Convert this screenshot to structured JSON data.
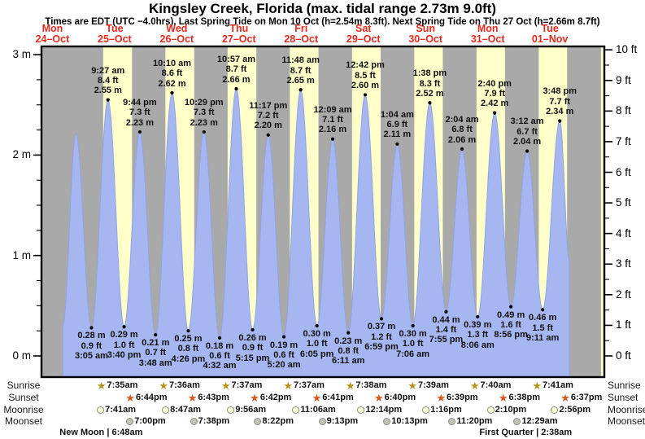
{
  "title": "Kingsley Creek, Florida (max. tidal range 2.73m 9.0ft)",
  "subtitle": "Times are EDT (UTC −4.0hrs). Last Spring Tide on Mon 10 Oct (h=2.54m 8.3ft). Next Spring Tide on Thu 27 Oct (h=2.66m 8.7ft)",
  "day_headers": [
    {
      "name": "Mon",
      "date": "24–Oct"
    },
    {
      "name": "Tue",
      "date": "25–Oct"
    },
    {
      "name": "Wed",
      "date": "26–Oct"
    },
    {
      "name": "Thu",
      "date": "27–Oct"
    },
    {
      "name": "Fri",
      "date": "28–Oct"
    },
    {
      "name": "Sat",
      "date": "29–Oct"
    },
    {
      "name": "Sun",
      "date": "30–Oct"
    },
    {
      "name": "Mon",
      "date": "31–Oct"
    },
    {
      "name": "Tue",
      "date": "01–Nov"
    }
  ],
  "left_axis_labels": [
    "3 m",
    "2 m",
    "1 m",
    "0 m"
  ],
  "right_axis_labels": [
    "10 ft",
    "9 ft",
    "8 ft",
    "7 ft",
    "6 ft",
    "5 ft",
    "4 ft",
    "3 ft",
    "2 ft",
    "1 ft",
    "0 ft"
  ],
  "chart_data": {
    "type": "area",
    "title": "Tide height curve, Kingsley Creek, Florida",
    "x_range": [
      "Mon 24-Oct ~16:00",
      "Tue 01-Nov ~19:30"
    ],
    "ylim_m": [
      0,
      3
    ],
    "ylim_ft": [
      0,
      10
    ],
    "grid": false,
    "extremes": [
      {
        "hours": 16.0,
        "m": 0.3,
        "type": "start",
        "labeled": false
      },
      {
        "hours": 21.083,
        "m": 2.21,
        "type": "H",
        "labeled": false
      },
      {
        "hours": 27.083,
        "m": 0.28,
        "type": "L",
        "labeled": true,
        "time": "3:05 am",
        "ft_label": "0.9 ft",
        "m_label": "0.28 m"
      },
      {
        "hours": 33.45,
        "m": 2.55,
        "type": "H",
        "labeled": true,
        "time": "9:27 am",
        "ft_label": "8.4 ft",
        "m_label": "2.55 m"
      },
      {
        "hours": 39.667,
        "m": 0.29,
        "type": "L",
        "labeled": true,
        "time": "3:40 pm",
        "ft_label": "1.0 ft",
        "m_label": "0.29 m"
      },
      {
        "hours": 45.733,
        "m": 2.23,
        "type": "H",
        "labeled": true,
        "time": "9:44 pm",
        "ft_label": "7.3 ft",
        "m_label": "2.23 m"
      },
      {
        "hours": 51.8,
        "m": 0.21,
        "type": "L",
        "labeled": true,
        "time": "3:48 am",
        "ft_label": "0.7 ft",
        "m_label": "0.21 m"
      },
      {
        "hours": 58.167,
        "m": 2.62,
        "type": "H",
        "labeled": true,
        "time": "10:10 am",
        "ft_label": "8.6 ft",
        "m_label": "2.62 m"
      },
      {
        "hours": 64.433,
        "m": 0.25,
        "type": "L",
        "labeled": true,
        "time": "4:26 pm",
        "ft_label": "0.8 ft",
        "m_label": "0.25 m"
      },
      {
        "hours": 70.483,
        "m": 2.23,
        "type": "H",
        "labeled": true,
        "time": "10:29 pm",
        "ft_label": "7.3 ft",
        "m_label": "2.23 m"
      },
      {
        "hours": 76.533,
        "m": 0.18,
        "type": "L",
        "labeled": true,
        "time": "4:32 am",
        "ft_label": "0.6 ft",
        "m_label": "0.18 m"
      },
      {
        "hours": 82.95,
        "m": 2.66,
        "type": "H",
        "labeled": true,
        "time": "10:57 am",
        "ft_label": "8.7 ft",
        "m_label": "2.66 m"
      },
      {
        "hours": 89.25,
        "m": 0.26,
        "type": "L",
        "labeled": true,
        "time": "5:15 pm",
        "ft_label": "0.9 ft",
        "m_label": "0.26 m"
      },
      {
        "hours": 95.283,
        "m": 2.2,
        "type": "H",
        "labeled": true,
        "time": "11:17 pm",
        "ft_label": "7.2 ft",
        "m_label": "2.20 m"
      },
      {
        "hours": 101.333,
        "m": 0.19,
        "type": "L",
        "labeled": true,
        "time": "5:20 am",
        "ft_label": "0.6 ft",
        "m_label": "0.19 m"
      },
      {
        "hours": 107.8,
        "m": 2.65,
        "type": "H",
        "labeled": true,
        "time": "11:48 am",
        "ft_label": "8.7 ft",
        "m_label": "2.65 m"
      },
      {
        "hours": 114.083,
        "m": 0.3,
        "type": "L",
        "labeled": true,
        "time": "6:05 pm",
        "ft_label": "1.0 ft",
        "m_label": "0.30 m"
      },
      {
        "hours": 120.15,
        "m": 2.16,
        "type": "H",
        "labeled": true,
        "time": "12:09 am",
        "ft_label": "7.1 ft",
        "m_label": "2.16 m"
      },
      {
        "hours": 126.183,
        "m": 0.23,
        "type": "L",
        "labeled": true,
        "time": "6:11 am",
        "ft_label": "0.8 ft",
        "m_label": "0.23 m"
      },
      {
        "hours": 132.7,
        "m": 2.6,
        "type": "H",
        "labeled": true,
        "time": "12:42 pm",
        "ft_label": "8.5 ft",
        "m_label": "2.60 m"
      },
      {
        "hours": 138.983,
        "m": 0.37,
        "type": "L",
        "labeled": true,
        "time": "6:59 pm",
        "ft_label": "1.2 ft",
        "m_label": "0.37 m"
      },
      {
        "hours": 145.067,
        "m": 2.11,
        "type": "H",
        "labeled": true,
        "time": "1:04 am",
        "ft_label": "6.9 ft",
        "m_label": "2.11 m"
      },
      {
        "hours": 151.1,
        "m": 0.3,
        "type": "L",
        "labeled": true,
        "time": "7:06 am",
        "ft_label": "1.0 ft",
        "m_label": "0.30 m"
      },
      {
        "hours": 157.633,
        "m": 2.52,
        "type": "H",
        "labeled": true,
        "time": "1:38 pm",
        "ft_label": "8.3 ft",
        "m_label": "2.52 m"
      },
      {
        "hours": 163.917,
        "m": 0.44,
        "type": "L",
        "labeled": true,
        "time": "7:55 pm",
        "ft_label": "1.4 ft",
        "m_label": "0.44 m"
      },
      {
        "hours": 170.067,
        "m": 2.06,
        "type": "H",
        "labeled": true,
        "time": "2:04 am",
        "ft_label": "6.8 ft",
        "m_label": "2.06 m"
      },
      {
        "hours": 176.1,
        "m": 0.39,
        "type": "L",
        "labeled": true,
        "time": "8:06 am",
        "ft_label": "1.3 ft",
        "m_label": "0.39 m"
      },
      {
        "hours": 182.667,
        "m": 2.42,
        "type": "H",
        "labeled": true,
        "time": "2:40 pm",
        "ft_label": "7.9 ft",
        "m_label": "2.42 m"
      },
      {
        "hours": 188.933,
        "m": 0.49,
        "type": "L",
        "labeled": true,
        "time": "8:56 pm",
        "ft_label": "1.6 ft",
        "m_label": "0.49 m"
      },
      {
        "hours": 195.2,
        "m": 2.04,
        "type": "H",
        "labeled": true,
        "time": "3:12 am",
        "ft_label": "6.7 ft",
        "m_label": "2.04 m"
      },
      {
        "hours": 201.183,
        "m": 0.46,
        "type": "L",
        "labeled": true,
        "time": "9:11 am",
        "ft_label": "1.5 ft",
        "m_label": "0.46 m"
      },
      {
        "hours": 207.8,
        "m": 2.34,
        "type": "H",
        "labeled": true,
        "time": "3:48 pm",
        "ft_label": "7.7 ft",
        "m_label": "2.34 m"
      },
      {
        "hours": 211.5,
        "m": 0.95,
        "type": "end",
        "labeled": false
      }
    ]
  },
  "sun_moon": {
    "row_labels": [
      "Sunrise",
      "Sunset",
      "Moonrise",
      "Moonset"
    ],
    "sunrise": [
      {
        "time": "7:35am",
        "hours": 31.583
      },
      {
        "time": "7:36am",
        "hours": 55.6
      },
      {
        "time": "7:37am",
        "hours": 79.617
      },
      {
        "time": "7:37am",
        "hours": 103.617
      },
      {
        "time": "7:38am",
        "hours": 127.633
      },
      {
        "time": "7:39am",
        "hours": 151.65
      },
      {
        "time": "7:40am",
        "hours": 175.667
      },
      {
        "time": "7:41am",
        "hours": 199.683
      }
    ],
    "sunset": [
      {
        "time": "6:44pm",
        "hours": 42.733
      },
      {
        "time": "6:43pm",
        "hours": 66.717
      },
      {
        "time": "6:42pm",
        "hours": 90.7
      },
      {
        "time": "6:41pm",
        "hours": 114.683
      },
      {
        "time": "6:40pm",
        "hours": 138.667
      },
      {
        "time": "6:39pm",
        "hours": 162.65
      },
      {
        "time": "6:38pm",
        "hours": 186.633
      },
      {
        "time": "6:37pm",
        "hours": 210.617
      }
    ],
    "moonrise": [
      {
        "time": "7:41am",
        "hours": 31.683
      },
      {
        "time": "8:47am",
        "hours": 56.783
      },
      {
        "time": "9:56am",
        "hours": 81.933
      },
      {
        "time": "11:06am",
        "hours": 107.1
      },
      {
        "time": "12:14pm",
        "hours": 132.233
      },
      {
        "time": "1:16pm",
        "hours": 157.267
      },
      {
        "time": "2:10pm",
        "hours": 182.167
      },
      {
        "time": "2:56pm",
        "hours": 206.933
      }
    ],
    "moonset": [
      {
        "time": "7:00pm",
        "hours": 43.0
      },
      {
        "time": "7:38pm",
        "hours": 67.633
      },
      {
        "time": "8:22pm",
        "hours": 92.367
      },
      {
        "time": "9:13pm",
        "hours": 117.217
      },
      {
        "time": "10:13pm",
        "hours": 142.217
      },
      {
        "time": "11:20pm",
        "hours": 167.333
      },
      {
        "time": "12:29am",
        "hours": 192.483
      }
    ],
    "extra_daylight_band": {
      "start_h": 223.7,
      "end_h": 226.0
    }
  },
  "moon_phases": [
    {
      "text": "New Moon | 6:48am",
      "hours": 30.8
    },
    {
      "text": "First Quarter | 2:38am",
      "hours": 194.633
    }
  ],
  "colors": {
    "night_band": "#a9a9a9",
    "day_band": "#ffffc9",
    "tide_fill": "#a6b6f0",
    "tide_edge": "#90a3e6",
    "date_red": "#e8291d",
    "axis_black": "#000000",
    "sunrise_star": "#b5931c",
    "sunset_star": "#d9571b",
    "moonrise_fill": "#ffffd4",
    "moonset_fill": "#c2c2b6"
  }
}
